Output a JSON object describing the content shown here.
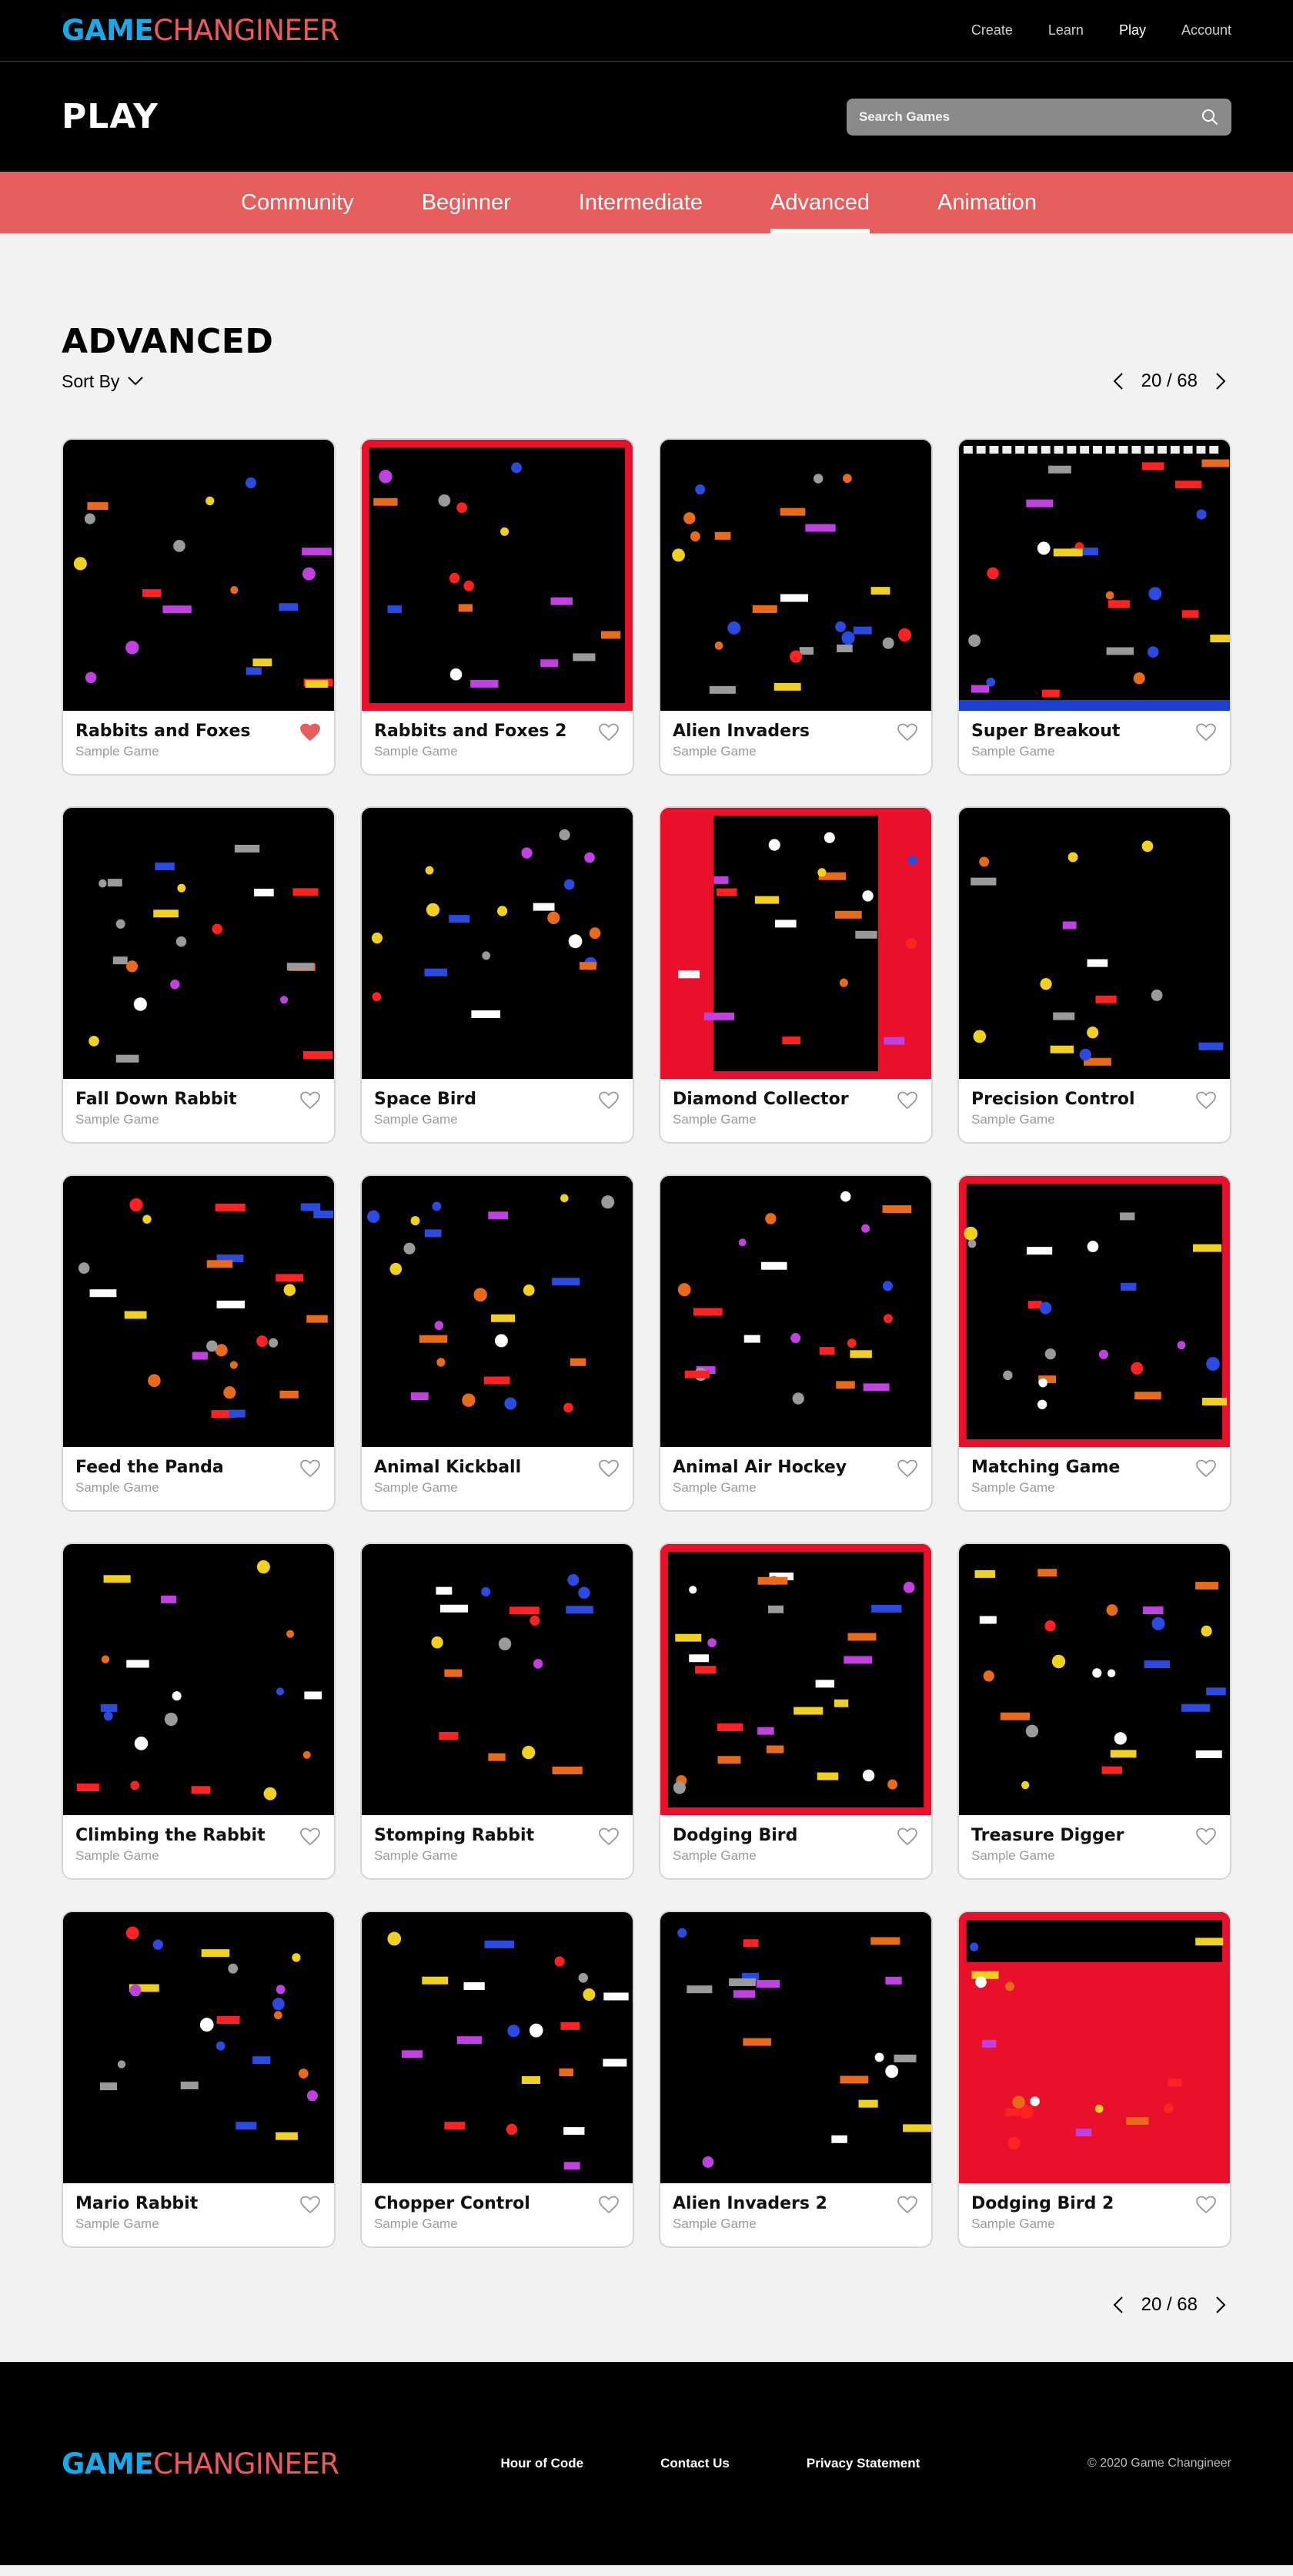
{
  "brand": {
    "part1": "GAME",
    "part2": "CHANGINEER"
  },
  "nav": [
    {
      "label": "Create",
      "active": false
    },
    {
      "label": "Learn",
      "active": false
    },
    {
      "label": "Play",
      "active": true
    },
    {
      "label": "Account",
      "active": false
    }
  ],
  "page": {
    "title": "PLAY"
  },
  "search": {
    "placeholder": "Search Games",
    "value": ""
  },
  "tabs": [
    {
      "label": "Community",
      "active": false
    },
    {
      "label": "Beginner",
      "active": false
    },
    {
      "label": "Intermediate",
      "active": false
    },
    {
      "label": "Advanced",
      "active": true
    },
    {
      "label": "Animation",
      "active": false
    }
  ],
  "section": {
    "title": "ADVANCED",
    "sort_label": "Sort By"
  },
  "pagination": {
    "text": "20 / 68"
  },
  "games": [
    {
      "title": "Rabbits and Foxes",
      "subtitle": "Sample Game",
      "favorited": true
    },
    {
      "title": "Rabbits and Foxes 2",
      "subtitle": "Sample Game",
      "favorited": false
    },
    {
      "title": "Alien Invaders",
      "subtitle": "Sample Game",
      "favorited": false
    },
    {
      "title": "Super Breakout",
      "subtitle": "Sample Game",
      "favorited": false
    },
    {
      "title": "Fall Down Rabbit",
      "subtitle": "Sample Game",
      "favorited": false
    },
    {
      "title": "Space Bird",
      "subtitle": "Sample Game",
      "favorited": false
    },
    {
      "title": "Diamond Collector",
      "subtitle": "Sample Game",
      "favorited": false
    },
    {
      "title": "Precision Control",
      "subtitle": "Sample Game",
      "favorited": false
    },
    {
      "title": "Feed the Panda",
      "subtitle": "Sample Game",
      "favorited": false
    },
    {
      "title": "Animal Kickball",
      "subtitle": "Sample Game",
      "favorited": false
    },
    {
      "title": "Animal Air Hockey",
      "subtitle": "Sample Game",
      "favorited": false
    },
    {
      "title": "Matching Game",
      "subtitle": "Sample Game",
      "favorited": false
    },
    {
      "title": "Climbing the Rabbit",
      "subtitle": "Sample Game",
      "favorited": false
    },
    {
      "title": "Stomping Rabbit",
      "subtitle": "Sample Game",
      "favorited": false
    },
    {
      "title": "Dodging Bird",
      "subtitle": "Sample Game",
      "favorited": false
    },
    {
      "title": "Treasure Digger",
      "subtitle": "Sample Game",
      "favorited": false
    },
    {
      "title": "Mario Rabbit",
      "subtitle": "Sample Game",
      "favorited": false
    },
    {
      "title": "Chopper Control",
      "subtitle": "Sample Game",
      "favorited": false
    },
    {
      "title": "Alien Invaders 2",
      "subtitle": "Sample Game",
      "favorited": false
    },
    {
      "title": "Dodging Bird 2",
      "subtitle": "Sample Game",
      "favorited": false
    }
  ],
  "footer": {
    "links": [
      "Hour of Code",
      "Contact Us",
      "Privacy Statement"
    ],
    "copyright": "© 2020 Game Changineer"
  },
  "colors": {
    "brand_blue": "#1aa8e8",
    "brand_red": "#ec5b5b",
    "tab_bar": "#e55d5c",
    "heart_active": "#e55d5c"
  }
}
